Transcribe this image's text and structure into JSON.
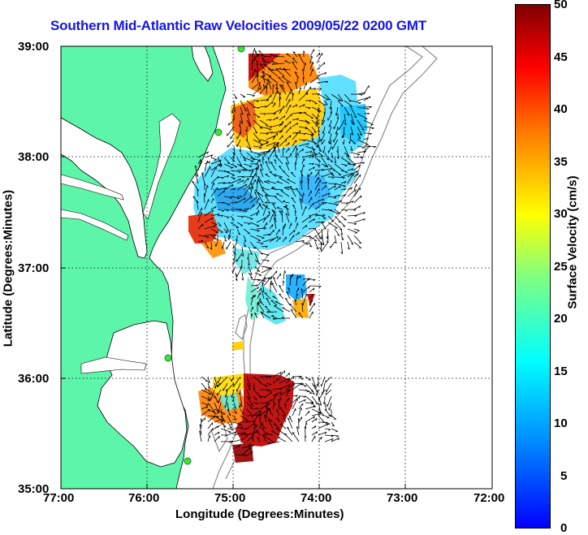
{
  "title": "Southern Mid-Atlantic Raw Velocities 2009/05/22 0200 GMT",
  "x_axis": {
    "label": "Longitude (Degrees:Minutes)",
    "ticks": [
      "77:00",
      "76:00",
      "75:00",
      "74:00",
      "73:00",
      "72:00"
    ]
  },
  "y_axis": {
    "label": "Latitude (Degrees:Minutes)",
    "ticks": [
      "39:00",
      "38:00",
      "37:00",
      "36:00",
      "35:00"
    ]
  },
  "colorbar": {
    "label": "Surface Velocity (cm/s)",
    "ticks": [
      "50",
      "45",
      "40",
      "35",
      "30",
      "25",
      "20",
      "15",
      "10",
      "5",
      "0"
    ],
    "min": 0,
    "max": 50,
    "colormap": "jet"
  },
  "colors": {
    "land": "#5cf5aa",
    "coastline": "#000000",
    "bathymetry": "#8c8c8c",
    "title": "#1515e8",
    "station": "#3ee23e"
  },
  "grid": "dotted",
  "legend_placement": "right colorbar"
}
